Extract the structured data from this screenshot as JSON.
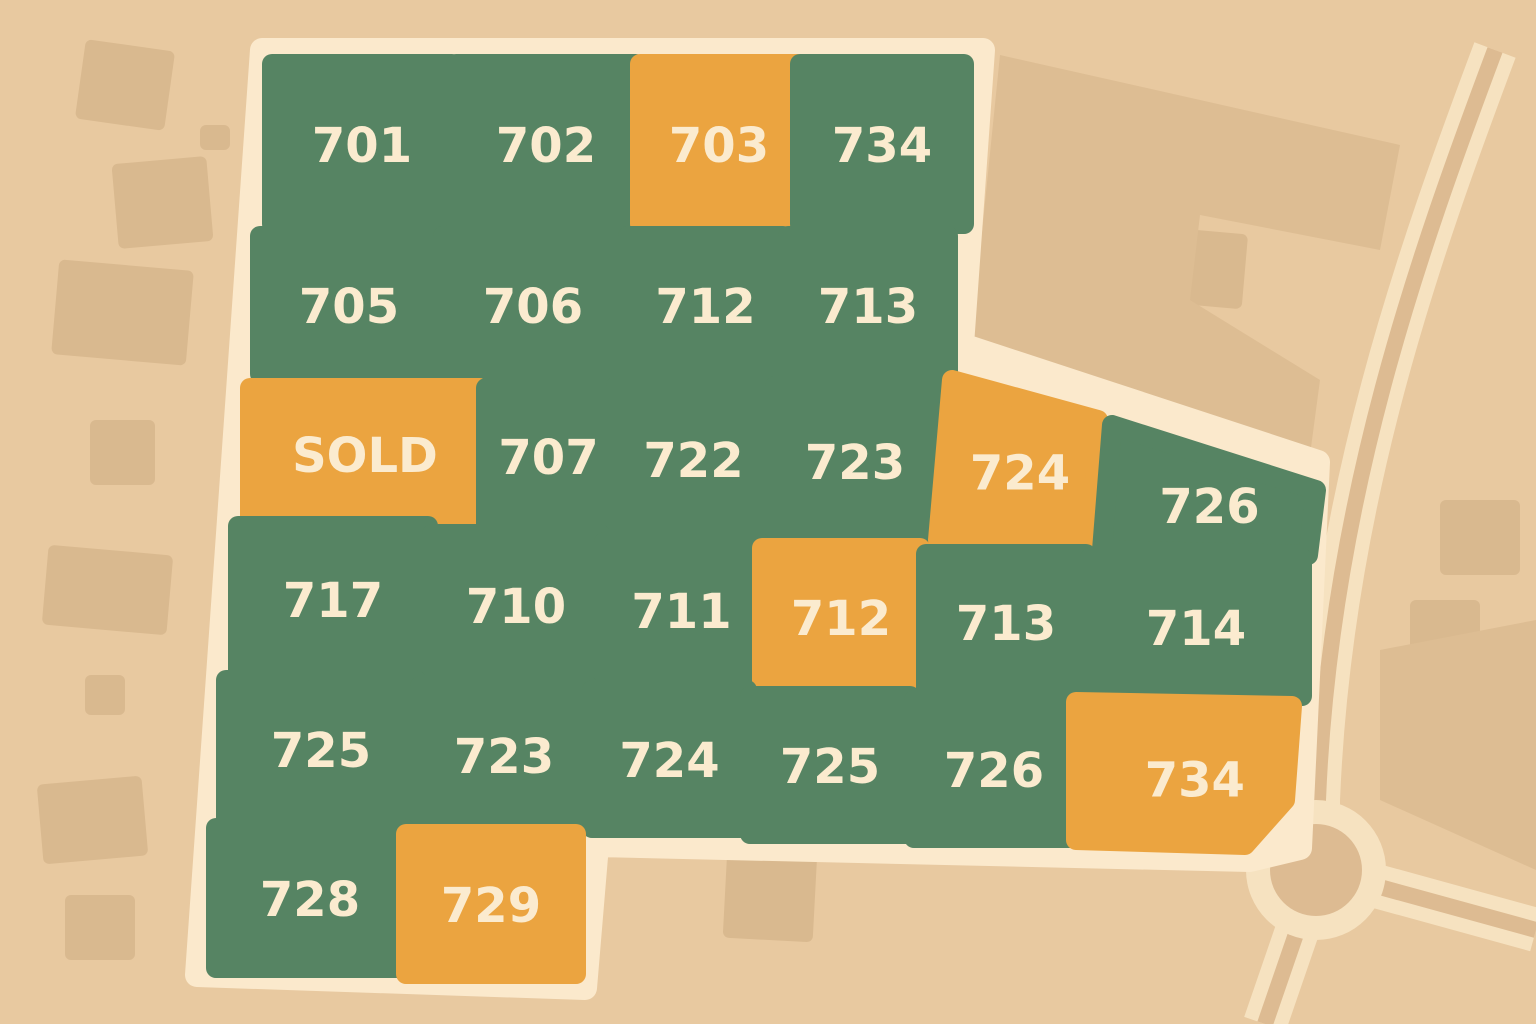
{
  "colors": {
    "background": "#E8C9A0",
    "building": "#D9B98F",
    "parcel": "#FBE9CC",
    "road": "#F6E2C0",
    "available": "#568463",
    "highlighted": "#EBA440",
    "label": "#FBEBCF"
  },
  "lots": [
    {
      "label": "701",
      "color": "#568463"
    },
    {
      "label": "702",
      "color": "#568463"
    },
    {
      "label": "703",
      "color": "#EBA440"
    },
    {
      "label": "734",
      "color": "#568463"
    },
    {
      "label": "705",
      "color": "#568463"
    },
    {
      "label": "706",
      "color": "#568463"
    },
    {
      "label": "712",
      "color": "#568463"
    },
    {
      "label": "713",
      "color": "#568463"
    },
    {
      "label": "SOLD",
      "color": "#EBA440"
    },
    {
      "label": "707",
      "color": "#568463"
    },
    {
      "label": "722",
      "color": "#568463"
    },
    {
      "label": "723",
      "color": "#568463"
    },
    {
      "label": "724",
      "color": "#EBA440"
    },
    {
      "label": "726",
      "color": "#568463"
    },
    {
      "label": "717",
      "color": "#568463"
    },
    {
      "label": "710",
      "color": "#568463"
    },
    {
      "label": "711",
      "color": "#568463"
    },
    {
      "label": "712",
      "color": "#EBA440"
    },
    {
      "label": "713",
      "color": "#568463"
    },
    {
      "label": "714",
      "color": "#568463"
    },
    {
      "label": "725",
      "color": "#568463"
    },
    {
      "label": "723",
      "color": "#568463"
    },
    {
      "label": "724",
      "color": "#568463"
    },
    {
      "label": "725",
      "color": "#568463"
    },
    {
      "label": "726",
      "color": "#568463"
    },
    {
      "label": "734",
      "color": "#EBA440"
    },
    {
      "label": "728",
      "color": "#568463"
    },
    {
      "label": "729",
      "color": "#EBA440"
    }
  ]
}
